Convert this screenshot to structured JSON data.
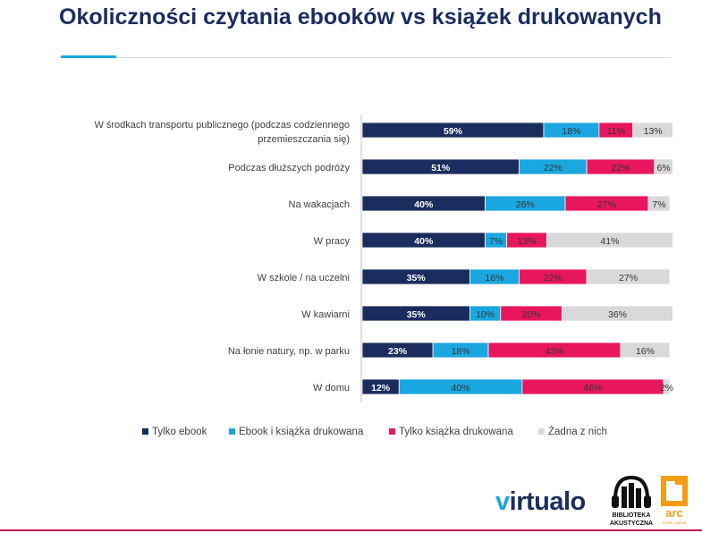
{
  "page": {
    "title": "Okoliczności czytania ebooków vs książek drukowanych"
  },
  "colors": {
    "title": "#1b2d5e",
    "accent": "#1aa7e0",
    "footer_line": "#c2185b"
  },
  "logos": {
    "virtualo_v": "v",
    "virtualo_rest": "irtualo",
    "biblioteka_line1": "BIBLIOTEKA",
    "biblioteka_line2": "AKUSTYCZNA",
    "arc_text": "arc",
    "arc_sub": "rynek i opinia"
  },
  "chart_data": {
    "type": "bar",
    "orientation": "horizontal",
    "stacked": true,
    "percent_stacked": true,
    "title": "",
    "xlabel": "",
    "ylabel": "",
    "xlim": [
      0,
      100
    ],
    "grid": false,
    "legend_position": "bottom",
    "categories": [
      "W środkach transportu publicznego (podczas codziennego przemieszczania się)",
      "Podczas dłuższych podróży",
      "Na wakacjach",
      "W pracy",
      "W szkole / na uczelni",
      "W kawiarni",
      "Na łonie natury, np. w parku",
      "W domu"
    ],
    "series": [
      {
        "name": "Tylko ebook",
        "color": "#1b2d5e",
        "label_color": "#ffffff",
        "label_bold": true,
        "values": [
          59,
          51,
          40,
          40,
          35,
          35,
          23,
          12
        ]
      },
      {
        "name": "Ebook i książka drukowana",
        "color": "#1aa7e0",
        "label_color": "#333333",
        "label_bold": false,
        "values": [
          18,
          22,
          26,
          7,
          16,
          10,
          18,
          40
        ]
      },
      {
        "name": "Tylko książka drukowana",
        "color": "#e8175d",
        "label_color": "#333333",
        "label_bold": false,
        "values": [
          11,
          22,
          27,
          13,
          22,
          20,
          43,
          46
        ]
      },
      {
        "name": "Żadna z nich",
        "color": "#d9d9d9",
        "label_color": "#333333",
        "label_bold": false,
        "values": [
          13,
          6,
          7,
          41,
          27,
          36,
          16,
          2
        ]
      }
    ]
  }
}
